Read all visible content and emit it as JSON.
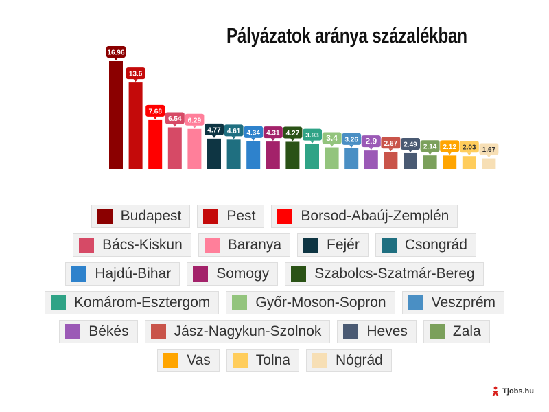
{
  "chart_data": {
    "type": "bar",
    "title": "Pályázatok aránya százalékban",
    "categories": [
      "Budapest",
      "Pest",
      "Borsod-Abaúj-Zemplén",
      "Bács-Kiskun",
      "Baranya",
      "Fejér",
      "Csongrád",
      "Hajdú-Bihar",
      "Somogy",
      "Szabolcs-Szatmár-Bereg",
      "Komárom-Esztergom",
      "Győr-Moson-Sopron",
      "Veszprém",
      "Békés",
      "Jász-Nagykun-Szolnok",
      "Heves",
      "Zala",
      "Vas",
      "Tolna",
      "Nógrád"
    ],
    "values": [
      16.96,
      13.6,
      7.68,
      6.54,
      6.29,
      4.77,
      4.61,
      4.34,
      4.31,
      4.27,
      3.93,
      3.4,
      3.26,
      2.9,
      2.67,
      2.49,
      2.14,
      2.12,
      2.03,
      1.67
    ],
    "value_labels": [
      "16.96",
      "13.6",
      "7.68",
      "6.54",
      "6.29",
      "4.77",
      "4.61",
      "4.34",
      "4.31",
      "4.27",
      "3.93",
      "3.4",
      "3.26",
      "2.9",
      "2.67",
      "2.49",
      "2.14",
      "2.12",
      "2.03",
      "1.67"
    ],
    "colors": [
      "#8b0000",
      "#c40a0a",
      "#ff0000",
      "#d64a66",
      "#ff7f9a",
      "#0e3543",
      "#1f6f80",
      "#2e82cc",
      "#a3226a",
      "#2a5216",
      "#2fa386",
      "#93c47d",
      "#4a8fc4",
      "#9b59b6",
      "#c9544a",
      "#4a5a73",
      "#7ba05b",
      "#ffa500",
      "#ffcd5c",
      "#f7dfb5"
    ],
    "legend_position": "bottom",
    "grid": false
  },
  "watermark": {
    "text": "Tjobs.hu"
  }
}
